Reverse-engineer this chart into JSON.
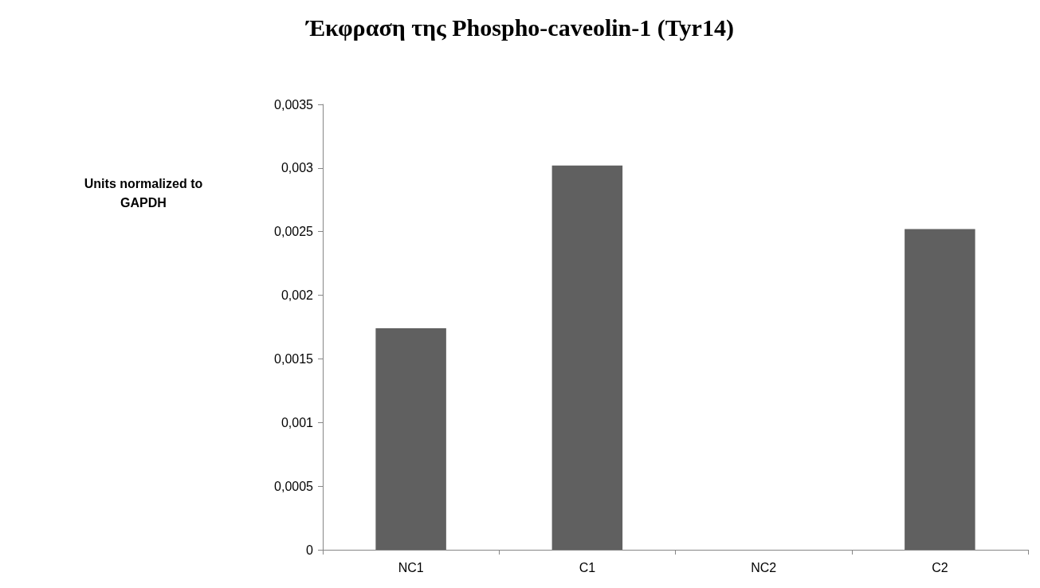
{
  "chart_data": {
    "type": "bar",
    "title": "Έκφραση της Phospho-caveolin-1 (Tyr14)",
    "annotations": [
      "Units normalized to GAPDH"
    ],
    "categories": [
      "NC1",
      "C1",
      "NC2",
      "C2"
    ],
    "values": [
      0.00174,
      0.00302,
      0,
      0.00252
    ],
    "color": "#606060",
    "ylim": [
      0,
      0.0035
    ],
    "yticks": [
      {
        "value": 0,
        "label": "0"
      },
      {
        "value": 0.0005,
        "label": "0,0005"
      },
      {
        "value": 0.001,
        "label": "0,001"
      },
      {
        "value": 0.0015,
        "label": "0,0015"
      },
      {
        "value": 0.002,
        "label": "0,002"
      },
      {
        "value": 0.0025,
        "label": "0,0025"
      },
      {
        "value": 0.003,
        "label": "0,003"
      },
      {
        "value": 0.0035,
        "label": "0,0035"
      }
    ],
    "grid": false
  }
}
